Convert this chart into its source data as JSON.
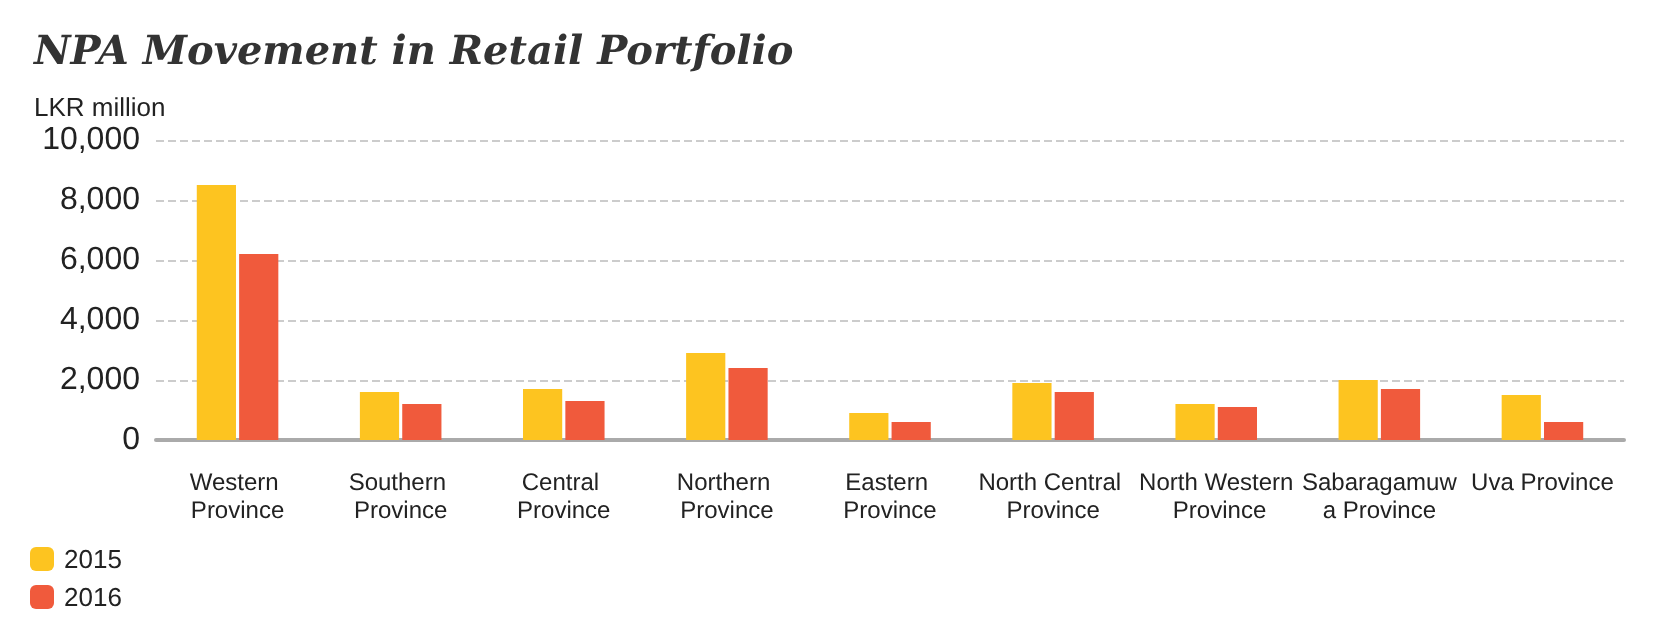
{
  "chart_data": {
    "type": "bar",
    "title": "NPA Movement in Retail Portfolio",
    "ylabel": "LKR million",
    "categories": [
      "Western Province",
      "Southern Province",
      "Central Province",
      "Northern Province",
      "Eastern Province",
      "North Central Province",
      "North Western Province",
      "Sabaragamuwa Province",
      "Uva Province"
    ],
    "series": [
      {
        "name": "2015",
        "color": "#fdc420",
        "values": [
          8500,
          1600,
          1700,
          2900,
          900,
          1900,
          1200,
          2000,
          1500
        ]
      },
      {
        "name": "2016",
        "color": "#f05a3c",
        "values": [
          6200,
          1200,
          1300,
          2400,
          600,
          1600,
          1100,
          1700,
          600
        ]
      }
    ],
    "ylim": [
      0,
      10000
    ],
    "yticks": [
      0,
      {
        "value": 2000,
        "label": "2,000"
      },
      {
        "value": 4000,
        "label": "4,000"
      },
      {
        "value": 6000,
        "label": "6,000"
      },
      {
        "value": 8000,
        "label": "8,000"
      },
      {
        "value": 10000,
        "label": "10,000"
      }
    ],
    "grid": "y",
    "legend": "bottom left"
  }
}
